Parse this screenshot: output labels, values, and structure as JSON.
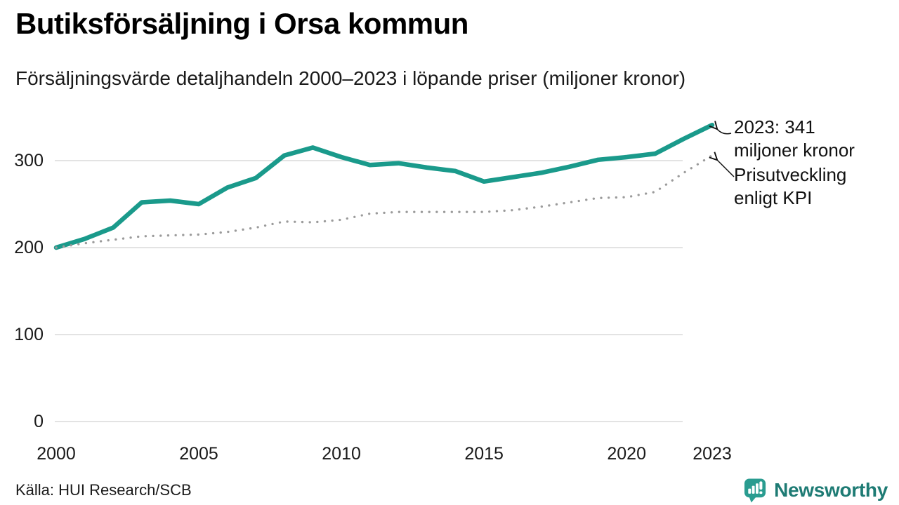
{
  "header": {
    "title": "Butiksförsäljning i Orsa kommun",
    "subtitle": "Försäljningsvärde detaljhandeln 2000–2023 i löpande priser (miljoner kronor)"
  },
  "chart_data": {
    "type": "line",
    "title": "Butiksförsäljning i Orsa kommun",
    "subtitle": "Försäljningsvärde detaljhandeln 2000–2023 i löpande priser (miljoner kronor)",
    "unit": "miljoner kronor",
    "grid": "horizontal",
    "legend_position": "annotations-right",
    "x": [
      2000,
      2001,
      2002,
      2003,
      2004,
      2005,
      2006,
      2007,
      2008,
      2009,
      2010,
      2011,
      2012,
      2013,
      2014,
      2015,
      2016,
      2017,
      2018,
      2019,
      2020,
      2021,
      2022,
      2023
    ],
    "series": [
      {
        "name": "Försäljningsvärde i löpande priser",
        "style": "solid",
        "color": "#1A9A8B",
        "values": [
          200,
          210,
          223,
          252,
          254,
          250,
          269,
          280,
          306,
          315,
          304,
          295,
          297,
          292,
          288,
          276,
          281,
          286,
          293,
          301,
          304,
          308,
          325,
          341
        ]
      },
      {
        "name": "Prisutveckling enligt KPI",
        "style": "dotted",
        "color": "#9B9B9B",
        "values": [
          200,
          205,
          209,
          213,
          214,
          215,
          218,
          223,
          230,
          229,
          232,
          239,
          241,
          241,
          241,
          241,
          243,
          247,
          252,
          257,
          258,
          264,
          286,
          306
        ]
      }
    ],
    "yticks": [
      0,
      100,
      200,
      300
    ],
    "xticks": [
      2000,
      2005,
      2010,
      2015,
      2020,
      2023
    ],
    "ylim": [
      0,
      360
    ],
    "xlim": [
      2000,
      2023
    ],
    "annotations": [
      {
        "line1": "2023: 341",
        "line2": "miljoner kronor",
        "series": "Försäljningsvärde i löpande priser",
        "year": 2023,
        "value": 341
      },
      {
        "line1": "Prisutveckling",
        "line2": "enligt KPI",
        "series": "Prisutveckling enligt KPI",
        "year": 2023,
        "value": 306
      }
    ]
  },
  "footer": {
    "source": "Källa: HUI Research/SCB",
    "logo_text": "Newsworthy"
  },
  "colors": {
    "accent_teal": "#1A9A8B",
    "kpi_gray": "#9B9B9B",
    "gridline": "#E3E3E3",
    "logo_icon_teal": "#2A9C90",
    "logo_text_teal": "#1E7B74"
  }
}
